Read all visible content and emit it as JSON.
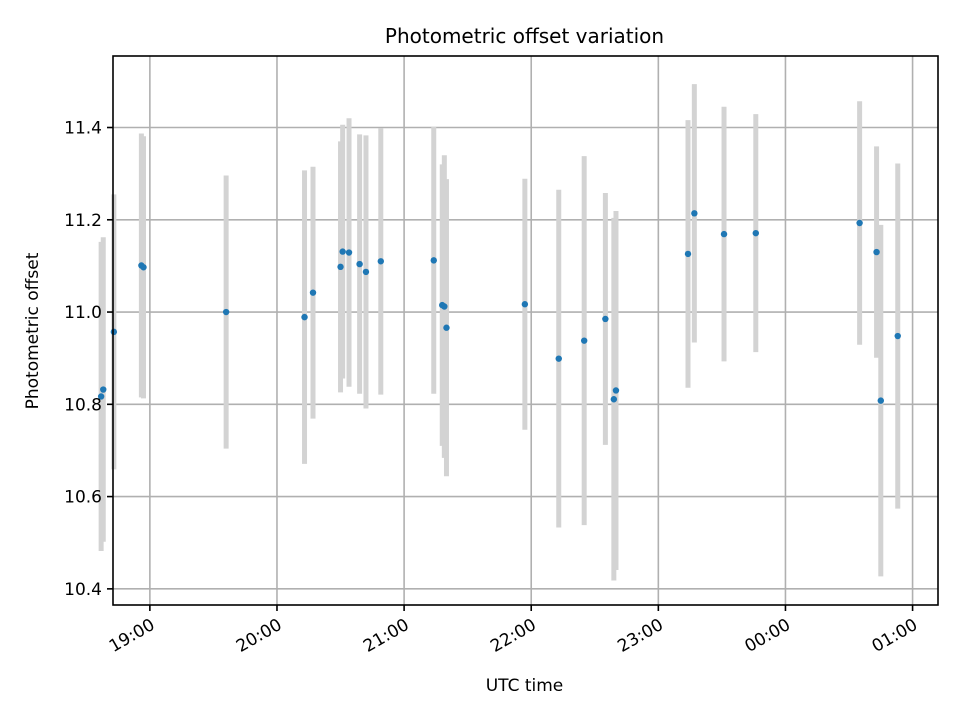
{
  "chart_data": {
    "type": "scatter",
    "title": "Photometric offset variation",
    "xlabel": "UTC time",
    "ylabel": "Photometric offset",
    "x_axis_kind": "time",
    "x_ticks": [
      "19:00",
      "20:00",
      "21:00",
      "22:00",
      "23:00",
      "00:00",
      "01:00"
    ],
    "x_tick_hours": [
      19,
      20,
      21,
      22,
      23,
      24,
      25
    ],
    "xlim_hours": [
      18.71,
      25.2
    ],
    "y_ticks": [
      10.4,
      10.6,
      10.8,
      11.0,
      11.2,
      11.4
    ],
    "ylim": [
      10.365,
      11.555
    ],
    "grid": true,
    "colors": {
      "points": "#1f77b4",
      "errorbars": "#d3d3d3",
      "grid": "#b0b0b0"
    },
    "series": [
      {
        "points": [
          {
            "time": "18:37",
            "y": 10.817,
            "err": 0.335
          },
          {
            "time": "18:38",
            "y": 10.832,
            "err": 0.33
          },
          {
            "time": "18:43",
            "y": 10.957,
            "err": 0.298
          },
          {
            "time": "18:56",
            "y": 11.101,
            "err": 0.286
          },
          {
            "time": "18:57",
            "y": 11.097,
            "err": 0.284
          },
          {
            "time": "19:36",
            "y": 11.0,
            "err": 0.296
          },
          {
            "time": "20:13",
            "y": 10.989,
            "err": 0.318
          },
          {
            "time": "20:17",
            "y": 11.042,
            "err": 0.273
          },
          {
            "time": "20:30",
            "y": 11.098,
            "err": 0.272
          },
          {
            "time": "20:31",
            "y": 11.131,
            "err": 0.275
          },
          {
            "time": "20:34",
            "y": 11.129,
            "err": 0.291
          },
          {
            "time": "20:39",
            "y": 11.104,
            "err": 0.281
          },
          {
            "time": "20:42",
            "y": 11.087,
            "err": 0.296
          },
          {
            "time": "20:49",
            "y": 11.11,
            "err": 0.289
          },
          {
            "time": "21:14",
            "y": 11.112,
            "err": 0.289
          },
          {
            "time": "21:18",
            "y": 11.015,
            "err": 0.305
          },
          {
            "time": "21:19",
            "y": 11.012,
            "err": 0.328
          },
          {
            "time": "21:20",
            "y": 10.966,
            "err": 0.322
          },
          {
            "time": "21:57",
            "y": 11.017,
            "err": 0.272
          },
          {
            "time": "22:13",
            "y": 10.899,
            "err": 0.366
          },
          {
            "time": "22:25",
            "y": 10.938,
            "err": 0.4
          },
          {
            "time": "22:35",
            "y": 10.985,
            "err": 0.273
          },
          {
            "time": "22:39",
            "y": 10.811,
            "err": 0.393
          },
          {
            "time": "22:40",
            "y": 10.83,
            "err": 0.389
          },
          {
            "time": "23:14",
            "y": 11.126,
            "err": 0.29
          },
          {
            "time": "23:17",
            "y": 11.214,
            "err": 0.28
          },
          {
            "time": "23:31",
            "y": 11.169,
            "err": 0.276
          },
          {
            "time": "23:46",
            "y": 11.171,
            "err": 0.258
          },
          {
            "time": "00:35",
            "y": 11.193,
            "err": 0.264
          },
          {
            "time": "00:43",
            "y": 11.13,
            "err": 0.229
          },
          {
            "time": "00:45",
            "y": 10.808,
            "err": 0.381
          },
          {
            "time": "00:53",
            "y": 10.948,
            "err": 0.374
          }
        ]
      }
    ]
  }
}
